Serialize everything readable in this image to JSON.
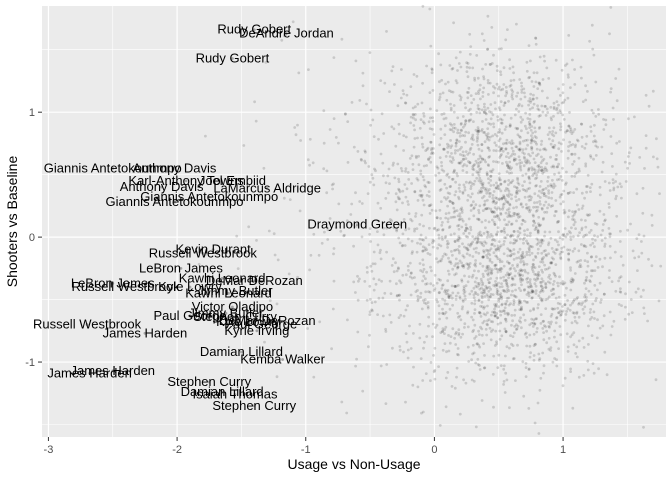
{
  "chart_data": {
    "type": "scatter",
    "title": "",
    "xlabel": "Usage vs Non-Usage",
    "ylabel": "Shooters vs Baseline",
    "xlim": [
      -3.05,
      1.8
    ],
    "ylim": [
      -1.6,
      1.85
    ],
    "x_ticks": [
      -3,
      -2,
      -1,
      0,
      1
    ],
    "y_ticks": [
      -1,
      0,
      1
    ],
    "x_tick_labels": [
      "-3",
      "-2",
      "-1",
      "0",
      "1"
    ],
    "y_tick_labels": [
      "-1",
      "0",
      "1"
    ],
    "grid": true,
    "legend": "none",
    "colors": {
      "panel": "#ebebeb",
      "gridline": "#ffffff",
      "point": "#000000",
      "label": "#000000"
    },
    "background_cloud": {
      "description_free": true,
      "n_points": 3000,
      "clusters": [
        {
          "cx": 0.55,
          "cy": 0.65,
          "sx": 0.45,
          "sy": 0.42,
          "weight": 0.45
        },
        {
          "cx": 0.55,
          "cy": -0.35,
          "sx": 0.45,
          "sy": 0.38,
          "weight": 0.45
        },
        {
          "cx": -0.3,
          "cy": 0.1,
          "sx": 0.6,
          "sy": 0.7,
          "weight": 0.1
        }
      ],
      "point_opacity": 0.15
    },
    "labeled_points": [
      {
        "name": "Rudy Gobert",
        "x": -1.4,
        "y": 1.66
      },
      {
        "name": "DeAndre Jordan",
        "x": -1.15,
        "y": 1.63
      },
      {
        "name": "Rudy Gobert",
        "x": -1.57,
        "y": 1.43
      },
      {
        "name": "Giannis Antetokounmpo",
        "x": -2.5,
        "y": 0.55
      },
      {
        "name": "Anthony Davis",
        "x": -2.02,
        "y": 0.55
      },
      {
        "name": "Karl-Anthony Towns",
        "x": -1.93,
        "y": 0.45
      },
      {
        "name": "Joel Embiid",
        "x": -1.57,
        "y": 0.45
      },
      {
        "name": "Anthony Davis",
        "x": -2.12,
        "y": 0.4
      },
      {
        "name": "LaMarcus Aldridge",
        "x": -1.3,
        "y": 0.39
      },
      {
        "name": "Giannis Antetokounmpo",
        "x": -1.75,
        "y": 0.32
      },
      {
        "name": "Giannis Antetokounmpo",
        "x": -2.02,
        "y": 0.28
      },
      {
        "name": "Draymond Green",
        "x": -0.6,
        "y": 0.1
      },
      {
        "name": "Kevin Durant",
        "x": -1.72,
        "y": -0.1
      },
      {
        "name": "Russell Westbrook",
        "x": -1.8,
        "y": -0.13
      },
      {
        "name": "LeBron James",
        "x": -1.97,
        "y": -0.25
      },
      {
        "name": "Kawhi Leonard",
        "x": -1.65,
        "y": -0.33
      },
      {
        "name": "DeMar DeRozan",
        "x": -1.4,
        "y": -0.35
      },
      {
        "name": "LeBron James",
        "x": -2.5,
        "y": -0.37
      },
      {
        "name": "Russell Westbrook",
        "x": -2.4,
        "y": -0.4
      },
      {
        "name": "Kyle Lowry",
        "x": -1.9,
        "y": -0.4
      },
      {
        "name": "Jimmy Butler",
        "x": -1.55,
        "y": -0.43
      },
      {
        "name": "Kawhi Leonard",
        "x": -1.6,
        "y": -0.45
      },
      {
        "name": "Victor Oladipo",
        "x": -1.57,
        "y": -0.56
      },
      {
        "name": "Jimmy Butler",
        "x": -1.62,
        "y": -0.61
      },
      {
        "name": "Paul George",
        "x": -1.9,
        "y": -0.63
      },
      {
        "name": "Stephen Curry",
        "x": -1.55,
        "y": -0.64
      },
      {
        "name": "DeMar DeRozan",
        "x": -1.3,
        "y": -0.67
      },
      {
        "name": "Kyle Lowry",
        "x": -1.45,
        "y": -0.68
      },
      {
        "name": "Paul George",
        "x": -1.35,
        "y": -0.7
      },
      {
        "name": "Russell Westbrook",
        "x": -2.7,
        "y": -0.7
      },
      {
        "name": "Kyrie Irving",
        "x": -1.38,
        "y": -0.75
      },
      {
        "name": "James Harden",
        "x": -2.25,
        "y": -0.77
      },
      {
        "name": "Damian Lillard",
        "x": -1.5,
        "y": -0.92
      },
      {
        "name": "Kemba Walker",
        "x": -1.18,
        "y": -0.98
      },
      {
        "name": "James Harden",
        "x": -2.5,
        "y": -1.07
      },
      {
        "name": "James Harden",
        "x": -2.68,
        "y": -1.09
      },
      {
        "name": "Stephen Curry",
        "x": -1.75,
        "y": -1.16
      },
      {
        "name": "Damian Lillard",
        "x": -1.65,
        "y": -1.24
      },
      {
        "name": "Isaiah Thomas",
        "x": -1.55,
        "y": -1.26
      },
      {
        "name": "Stephen Curry",
        "x": -1.4,
        "y": -1.35
      }
    ]
  }
}
